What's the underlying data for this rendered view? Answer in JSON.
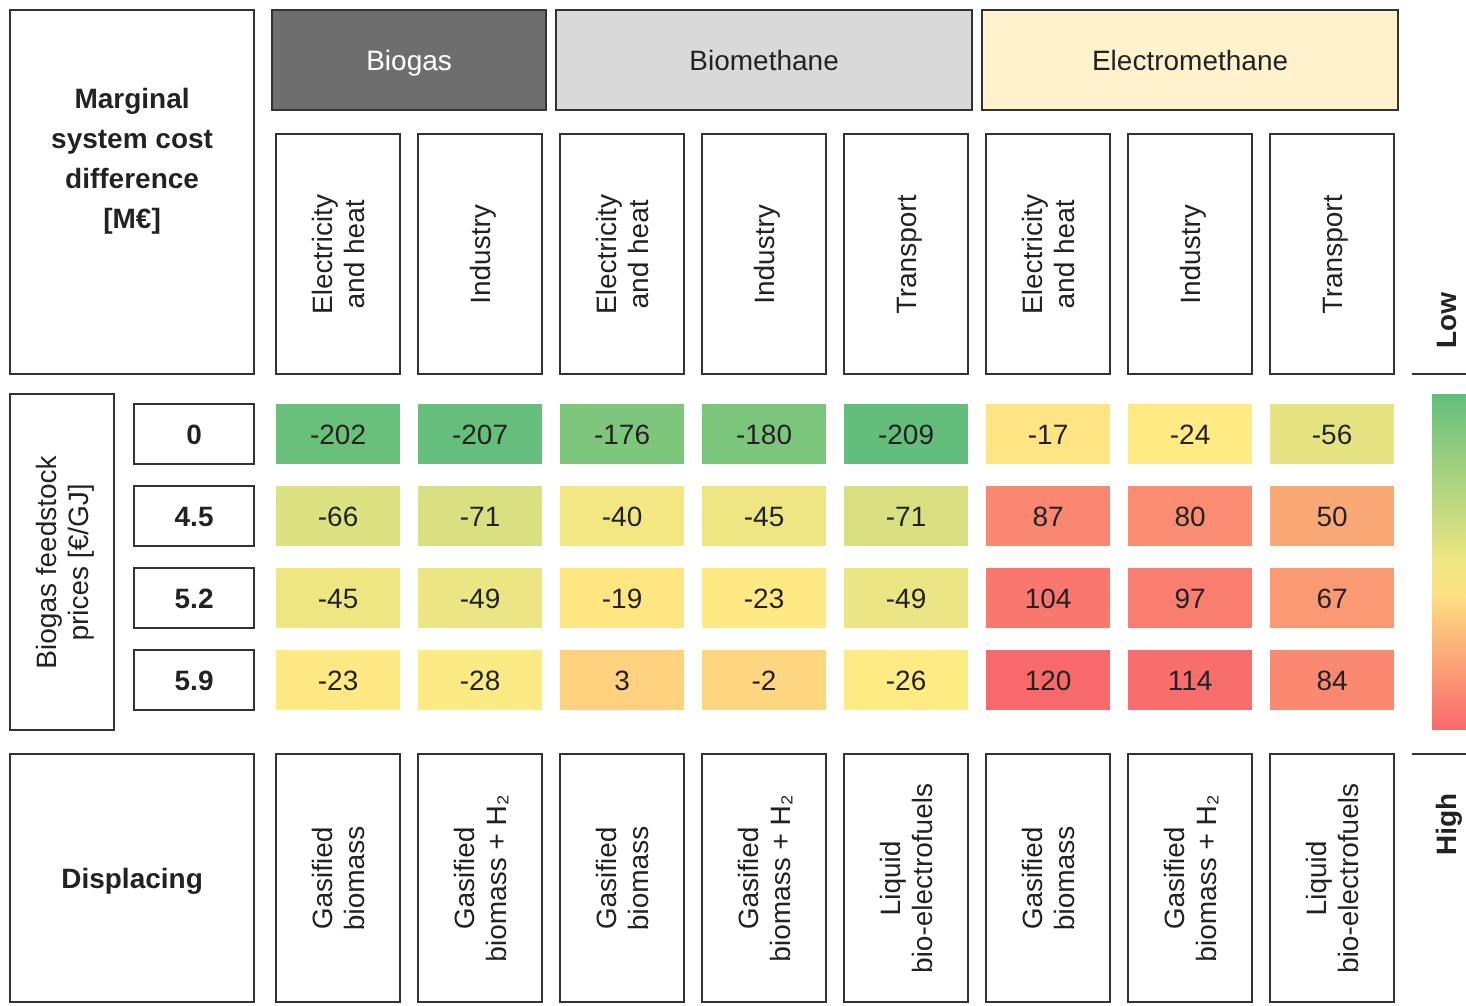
{
  "chart_data": {
    "type": "heatmap",
    "title": "Marginal system cost difference [M€]",
    "ylabel": "Biogas feedstock prices [€/GJ]",
    "categories": [
      "Electricity and heat",
      "Industry",
      "Electricity and heat",
      "Industry",
      "Transport",
      "Electricity and heat",
      "Industry",
      "Transport"
    ],
    "y_categories": [
      "0",
      "4.5",
      "5.2",
      "5.9"
    ],
    "cells": [
      [
        -202,
        -207,
        -176,
        -180,
        -209,
        -17,
        -24,
        -56
      ],
      [
        -66,
        -71,
        -40,
        -45,
        -71,
        87,
        80,
        50
      ],
      [
        -45,
        -49,
        -19,
        -23,
        -49,
        104,
        97,
        67
      ],
      [
        -23,
        -28,
        3,
        -2,
        -26,
        120,
        114,
        84
      ]
    ],
    "data_labels": true,
    "annotations": [
      "Biogas",
      "Biomethane",
      "Electromethane",
      "Displacing",
      "Gasified biomass",
      "Gasified biomass + H₂",
      "Gasified biomass",
      "Gasified biomass + H₂",
      "Liquid bio-electrofuels",
      "Gasified biomass",
      "Gasified biomass + H₂",
      "Liquid bio-electrofuels",
      "Low",
      "High"
    ]
  }
}
